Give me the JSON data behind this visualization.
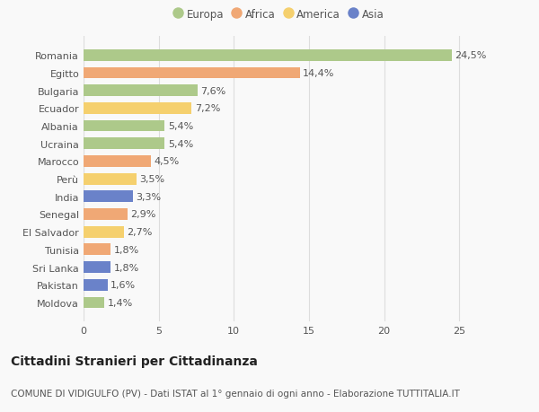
{
  "countries": [
    "Romania",
    "Egitto",
    "Bulgaria",
    "Ecuador",
    "Albania",
    "Ucraina",
    "Marocco",
    "Perù",
    "India",
    "Senegal",
    "El Salvador",
    "Tunisia",
    "Sri Lanka",
    "Pakistan",
    "Moldova"
  ],
  "values": [
    24.5,
    14.4,
    7.6,
    7.2,
    5.4,
    5.4,
    4.5,
    3.5,
    3.3,
    2.9,
    2.7,
    1.8,
    1.8,
    1.6,
    1.4
  ],
  "labels": [
    "24,5%",
    "14,4%",
    "7,6%",
    "7,2%",
    "5,4%",
    "5,4%",
    "4,5%",
    "3,5%",
    "3,3%",
    "2,9%",
    "2,7%",
    "1,8%",
    "1,8%",
    "1,6%",
    "1,4%"
  ],
  "continents": [
    "Europa",
    "Africa",
    "Europa",
    "America",
    "Europa",
    "Europa",
    "Africa",
    "America",
    "Asia",
    "Africa",
    "America",
    "Africa",
    "Asia",
    "Asia",
    "Europa"
  ],
  "colors": {
    "Europa": "#adc98a",
    "Africa": "#f0a875",
    "America": "#f5d06e",
    "Asia": "#6a82c9"
  },
  "legend_order": [
    "Europa",
    "Africa",
    "America",
    "Asia"
  ],
  "title": "Cittadini Stranieri per Cittadinanza",
  "subtitle": "COMUNE DI VIDIGULFO (PV) - Dati ISTAT al 1° gennaio di ogni anno - Elaborazione TUTTITALIA.IT",
  "xlim": [
    0,
    26
  ],
  "xticks": [
    0,
    5,
    10,
    15,
    20,
    25
  ],
  "background_color": "#f9f9f9",
  "bar_height": 0.65,
  "grid_color": "#dddddd",
  "label_fontsize": 8,
  "tick_fontsize": 8,
  "title_fontsize": 10,
  "subtitle_fontsize": 7.5
}
